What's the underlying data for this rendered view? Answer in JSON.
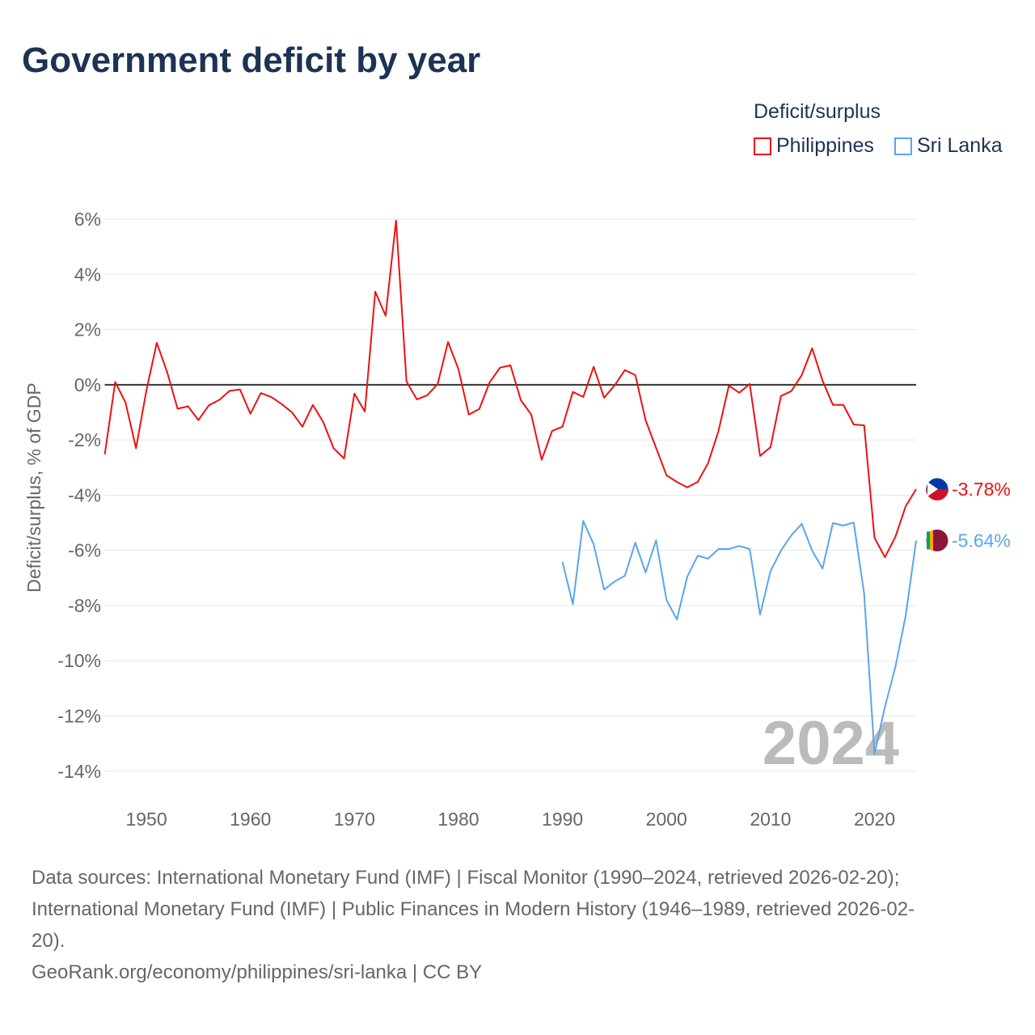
{
  "title": "Government deficit by year",
  "legend": {
    "title": "Deficit/surplus",
    "items": [
      {
        "name": "Philippines",
        "color": "#ee1111"
      },
      {
        "name": "Sri Lanka",
        "color": "#5aa5ee"
      }
    ]
  },
  "watermark_year": "2024",
  "sources": {
    "line1": "Data sources: International Monetary Fund (IMF) | Fiscal Monitor (1990–2024, retrieved 2026-02-20);",
    "line2": "International Monetary Fund (IMF) | Public Finances in Modern History (1946–1989, retrieved 2026-02-",
    "line3": "20).",
    "line4": "GeoRank.org/economy/philippines/sri-lanka | CC BY"
  },
  "chart_data": {
    "type": "line",
    "title": "Government deficit by year",
    "ylabel": "Deficit/surplus, % of GDP",
    "xlabel": "",
    "xlim": [
      1946,
      2024
    ],
    "ylim": [
      -15,
      6
    ],
    "xticks": [
      "1950",
      "1960",
      "1970",
      "1980",
      "1990",
      "2000",
      "2010",
      "2020"
    ],
    "yticks": [
      {
        "v": 6,
        "l": "6%"
      },
      {
        "v": 4,
        "l": "4%"
      },
      {
        "v": 2,
        "l": "2%"
      },
      {
        "v": 0,
        "l": "0%"
      },
      {
        "v": -2,
        "l": "-2%"
      },
      {
        "v": -4,
        "l": "-4%"
      },
      {
        "v": -6,
        "l": "-6%"
      },
      {
        "v": -8,
        "l": "-8%"
      },
      {
        "v": -10,
        "l": "-10%"
      },
      {
        "v": -12,
        "l": "-12%"
      },
      {
        "v": -14,
        "l": "-14%"
      }
    ],
    "grid": true,
    "legend_position": "top-right",
    "series": [
      {
        "name": "Philippines",
        "color": "#ee1111",
        "end_label": "-3.78%",
        "start": 1946,
        "values": [
          -2.52,
          0.1,
          -0.65,
          -2.3,
          -0.2,
          1.52,
          0.45,
          -0.87,
          -0.78,
          -1.28,
          -0.75,
          -0.55,
          -0.22,
          -0.17,
          -1.05,
          -0.3,
          -0.44,
          -0.7,
          -1.0,
          -1.52,
          -0.73,
          -1.35,
          -2.3,
          -2.67,
          -0.32,
          -0.97,
          3.37,
          2.5,
          5.95,
          0.12,
          -0.53,
          -0.38,
          0.03,
          1.55,
          0.56,
          -1.08,
          -0.88,
          0.09,
          0.62,
          0.7,
          -0.56,
          -1.08,
          -2.72,
          -1.67,
          -1.52,
          -0.26,
          -0.44,
          0.65,
          -0.47,
          -0.03,
          0.53,
          0.35,
          -1.29,
          -2.29,
          -3.28,
          -3.52,
          -3.72,
          -3.52,
          -2.84,
          -1.67,
          -0.03,
          -0.29,
          0.03,
          -2.58,
          -2.26,
          -0.41,
          -0.23,
          0.35,
          1.32,
          0.15,
          -0.73,
          -0.73,
          -1.44,
          -1.47,
          -5.54,
          -6.25,
          -5.51,
          -4.4,
          -3.78
        ]
      },
      {
        "name": "Sri Lanka",
        "color": "#5aa5ee",
        "end_label": "-5.64%",
        "start": 1990,
        "values": [
          -6.42,
          -7.95,
          -4.93,
          -5.78,
          -7.42,
          -7.13,
          -6.92,
          -5.72,
          -6.8,
          -5.63,
          -7.8,
          -8.5,
          -6.95,
          -6.19,
          -6.3,
          -5.95,
          -5.95,
          -5.84,
          -5.95,
          -8.33,
          -6.75,
          -6.01,
          -5.45,
          -5.04,
          -6.01,
          -6.66,
          -5.01,
          -5.1,
          -4.99,
          -7.57,
          -13.37,
          -11.67,
          -10.23,
          -8.36,
          -5.64
        ]
      }
    ]
  }
}
